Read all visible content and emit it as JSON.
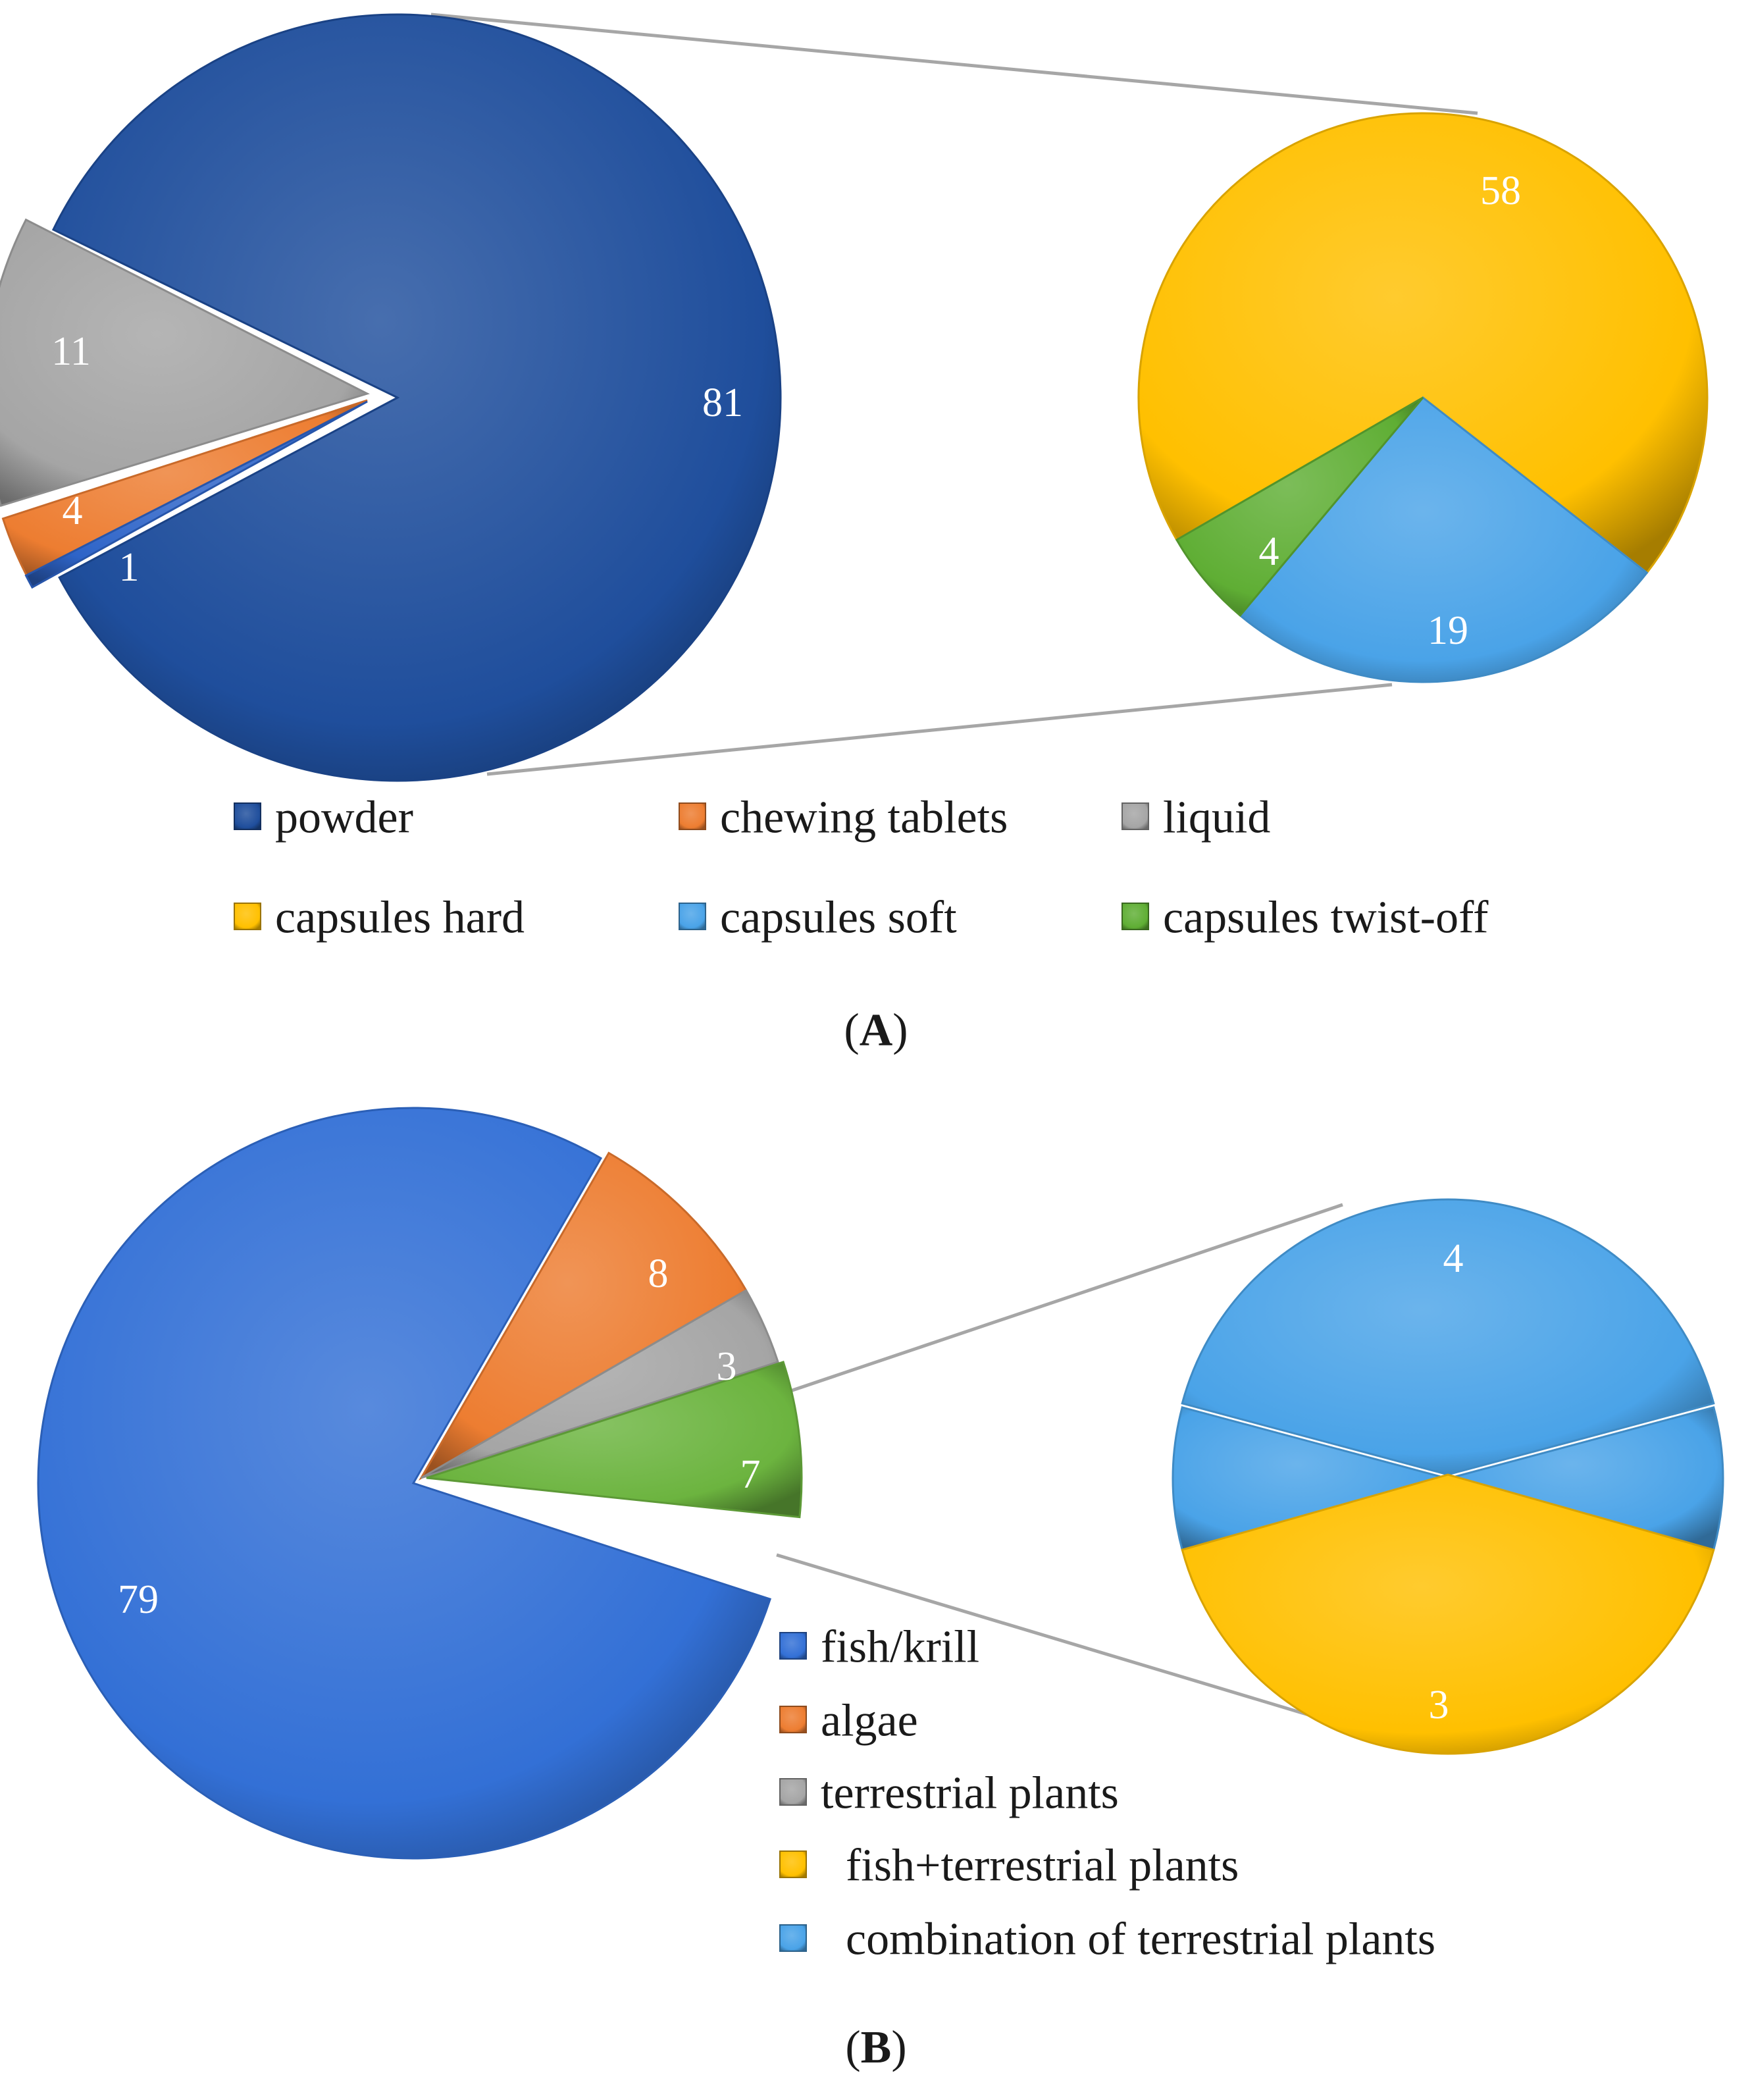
{
  "chart_data": [
    {
      "type": "pie",
      "panel_label": "A",
      "main": {
        "slices": [
          {
            "label": "powder",
            "value": 81,
            "color": "#1f4e9c"
          },
          {
            "label": "chewing tablets",
            "value": 4,
            "color": "#ed7d31"
          },
          {
            "label": "liquid",
            "value": 11,
            "color": "#a5a5a5"
          },
          {
            "label": "",
            "value": 1,
            "color": "#2e64c8"
          }
        ]
      },
      "detail": {
        "breakdown_of": "powder",
        "slices": [
          {
            "label": "capsules hard",
            "value": 58,
            "color": "#ffc000"
          },
          {
            "label": "capsules soft",
            "value": 19,
            "color": "#4aa3e8"
          },
          {
            "label": "capsules twist-off",
            "value": 4,
            "color": "#5fae34"
          }
        ]
      },
      "legend": [
        {
          "label": "powder",
          "color": "#1f4e9c"
        },
        {
          "label": "chewing tablets",
          "color": "#ed7d31"
        },
        {
          "label": "liquid",
          "color": "#a5a5a5"
        },
        {
          "label": "capsules hard",
          "color": "#ffc000"
        },
        {
          "label": "capsules soft",
          "color": "#4aa3e8"
        },
        {
          "label": "capsules twist-off",
          "color": "#5fae34"
        }
      ]
    },
    {
      "type": "pie",
      "panel_label": "B",
      "main": {
        "slices": [
          {
            "label": "fish/krill",
            "value": 79,
            "color": "#3370d6"
          },
          {
            "label": "algae",
            "value": 8,
            "color": "#ed7d31"
          },
          {
            "label": "terrestrial plants",
            "value": 3,
            "color": "#a5a5a5"
          },
          {
            "label": "",
            "value": 7,
            "color": "#6cb43f"
          }
        ]
      },
      "detail": {
        "breakdown_of": "",
        "slices": [
          {
            "label": "combination of terrestrial plants",
            "value": 4,
            "color": "#4aa3e8"
          },
          {
            "label": "fish+terrestrial plants",
            "value": 3,
            "color": "#ffc000"
          }
        ]
      },
      "legend": [
        {
          "label": "fish/krill",
          "color": "#3370d6"
        },
        {
          "label": "algae",
          "color": "#ed7d31"
        },
        {
          "label": "terrestrial plants",
          "color": "#a5a5a5"
        },
        {
          "label": "fish+terrestrial plants",
          "color": "#ffc000"
        },
        {
          "label": "combination of terrestrial plants",
          "color": "#4aa3e8"
        }
      ]
    }
  ]
}
